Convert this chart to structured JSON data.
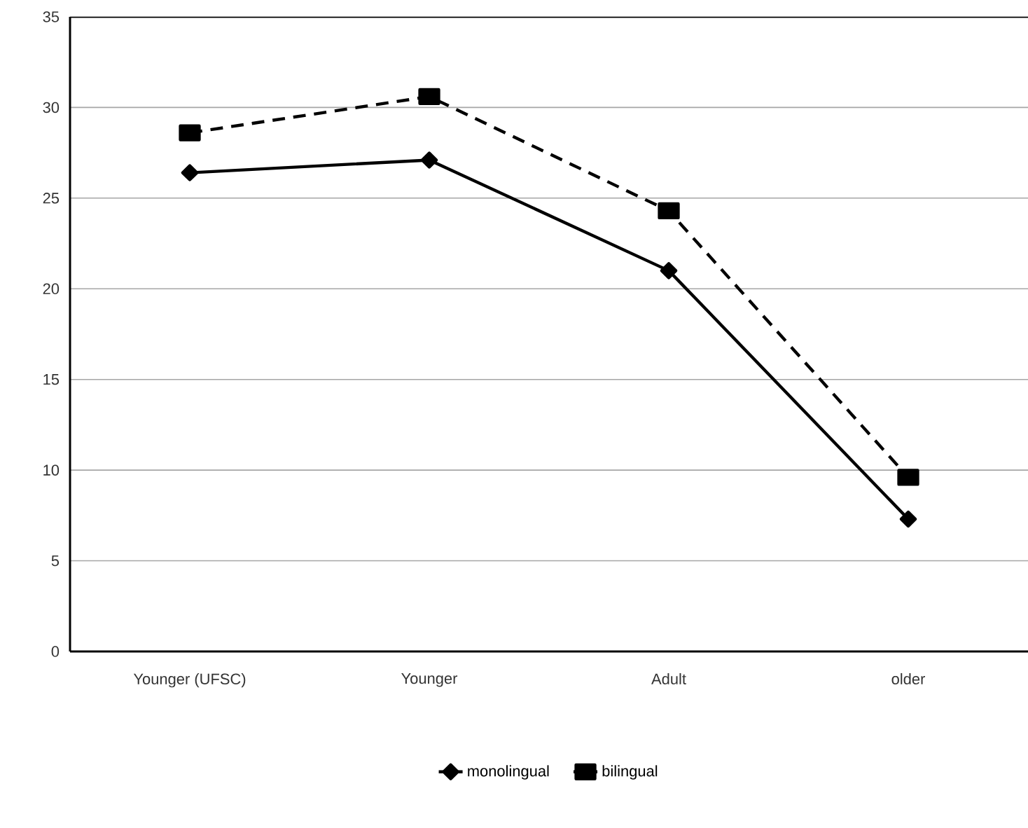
{
  "chart_data": {
    "type": "line",
    "categories": [
      "Younger (UFSC)",
      "Younger",
      "Adult",
      "older"
    ],
    "series": [
      {
        "name": "monolingual",
        "color": "#000000",
        "marker": "diamond",
        "line_style": "solid",
        "values": [
          26.4,
          27.1,
          21.0,
          7.3
        ]
      },
      {
        "name": "bilingual",
        "color": "#000000",
        "marker": "square",
        "line_style": "dashed",
        "values": [
          28.6,
          30.6,
          24.3,
          9.6
        ]
      }
    ],
    "ylim": [
      0,
      35
    ],
    "yticks": [
      0,
      5,
      10,
      15,
      20,
      25,
      30,
      35
    ],
    "grid": "y",
    "legend": "bottom"
  }
}
